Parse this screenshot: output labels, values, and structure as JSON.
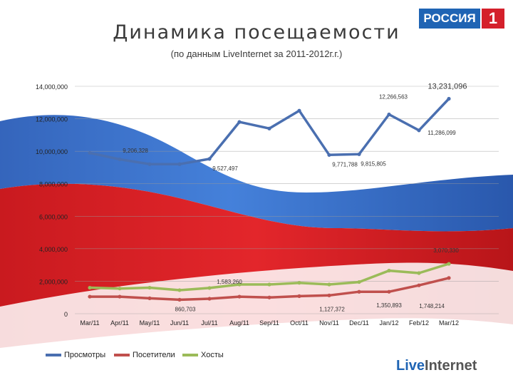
{
  "header": {
    "title": "Динамика посещаемости",
    "subtitle": "(по данным LiveInternet за 2011-2012г.г.)"
  },
  "logos": {
    "channel_text": "РОССИЯ",
    "channel_number": "1",
    "provider_part1": "Live",
    "provider_part2": "Internet"
  },
  "colors": {
    "views": "#4a6fb0",
    "visitors": "#c0504d",
    "hosts": "#9bbb59"
  },
  "chart_data": {
    "type": "line",
    "categories": [
      "Mar/11",
      "Apr/11",
      "May/11",
      "Jun/11",
      "Jul/11",
      "Aug/11",
      "Sep/11",
      "Oct/11",
      "Nov/11",
      "Dec/11",
      "Jan/12",
      "Feb/12",
      "Mar/12"
    ],
    "y_ticks": [
      "14,000,000",
      "12,000,000",
      "10,000,000",
      "8,000,000",
      "6,000,000",
      "4,000,000",
      "2,000,000",
      "0"
    ],
    "ylim": [
      0,
      14000000
    ],
    "legend_position": "bottom-left",
    "series": [
      {
        "name": "Просмотры",
        "values": [
          9900000,
          9500000,
          9206328,
          9206328,
          9527497,
          11800000,
          11400000,
          12500000,
          9771788,
          9815805,
          12266563,
          11286099,
          13231096
        ]
      },
      {
        "name": "Посетители",
        "values": [
          1050000,
          1050000,
          950000,
          860703,
          920000,
          1050000,
          1000000,
          1080000,
          1127372,
          1350000,
          1350893,
          1748214,
          2200000
        ]
      },
      {
        "name": "Хосты",
        "values": [
          1600000,
          1550000,
          1600000,
          1450000,
          1583260,
          1800000,
          1800000,
          1900000,
          1800000,
          1950000,
          2650000,
          2500000,
          3070330
        ]
      }
    ],
    "data_labels": [
      {
        "series": 0,
        "index": 2,
        "text": "9,206,328"
      },
      {
        "series": 0,
        "index": 4,
        "text": "9,527,497"
      },
      {
        "series": 0,
        "index": 8,
        "text": "9,771,788"
      },
      {
        "series": 0,
        "index": 9,
        "text": "9,815,805"
      },
      {
        "series": 0,
        "index": 10,
        "text": "12,266,563"
      },
      {
        "series": 0,
        "index": 11,
        "text": "11,286,099"
      },
      {
        "series": 0,
        "index": 12,
        "text": "13,231,096"
      },
      {
        "series": 1,
        "index": 3,
        "text": "860,703"
      },
      {
        "series": 1,
        "index": 8,
        "text": "1,127,372"
      },
      {
        "series": 1,
        "index": 10,
        "text": "1,350,893"
      },
      {
        "series": 1,
        "index": 11,
        "text": "1,748,214"
      },
      {
        "series": 2,
        "index": 4,
        "text": "1,583,260"
      },
      {
        "series": 2,
        "index": 12,
        "text": "3,070,330"
      }
    ]
  }
}
